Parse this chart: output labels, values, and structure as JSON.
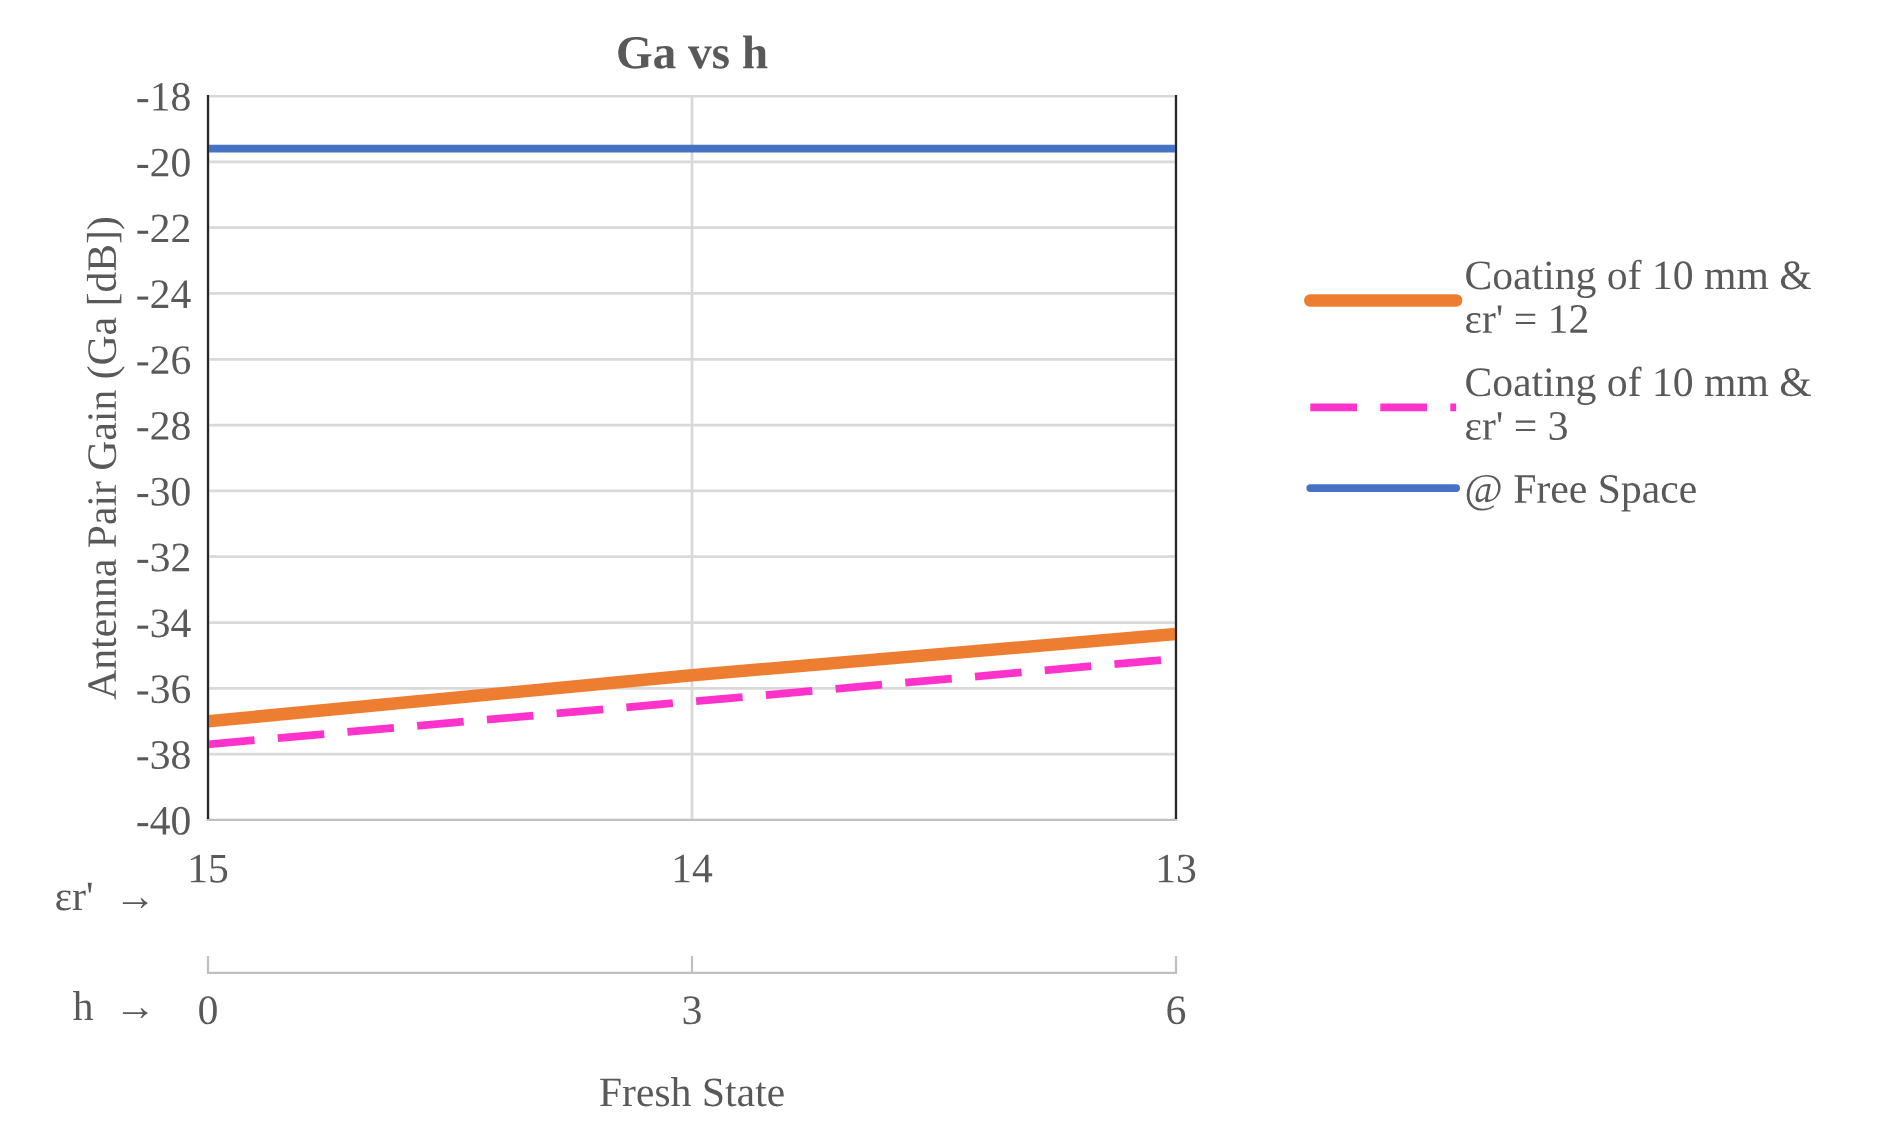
{
  "chart_data": {
    "type": "line",
    "title": "Ga vs h",
    "xlabel": "Fresh State",
    "ylabel": "Antenna Pair Gain (Ga [dB])",
    "x": [
      0,
      3,
      6
    ],
    "xlim": [
      0,
      6
    ],
    "xticks": [
      0,
      3,
      6
    ],
    "x2lim": [
      15,
      13
    ],
    "x2ticks": [
      15,
      14,
      13
    ],
    "ylim": [
      -40,
      -18
    ],
    "yticks": [
      -40,
      -38,
      -36,
      -34,
      -32,
      -30,
      -28,
      -26,
      -24,
      -22,
      -20,
      -18
    ],
    "grid": true,
    "legend": "right",
    "annotations": [
      "εr'  →",
      "h  →"
    ],
    "series": [
      {
        "name": "Coating of 10 mm &\nεr' = 12",
        "color": "#ed7d31",
        "values": [
          -37.0,
          -35.6,
          -34.35
        ],
        "line_style": "solid"
      },
      {
        "name": "Coating of 10 mm &\nεr' = 3",
        "color": "#ff33cc",
        "values": [
          -37.7,
          -36.4,
          -35.1
        ],
        "line_style": "dashed"
      },
      {
        "name": "@ Free Space",
        "color": "#4472c4",
        "values": [
          -19.6,
          -19.6,
          -19.6
        ],
        "line_style": "solid"
      }
    ]
  }
}
